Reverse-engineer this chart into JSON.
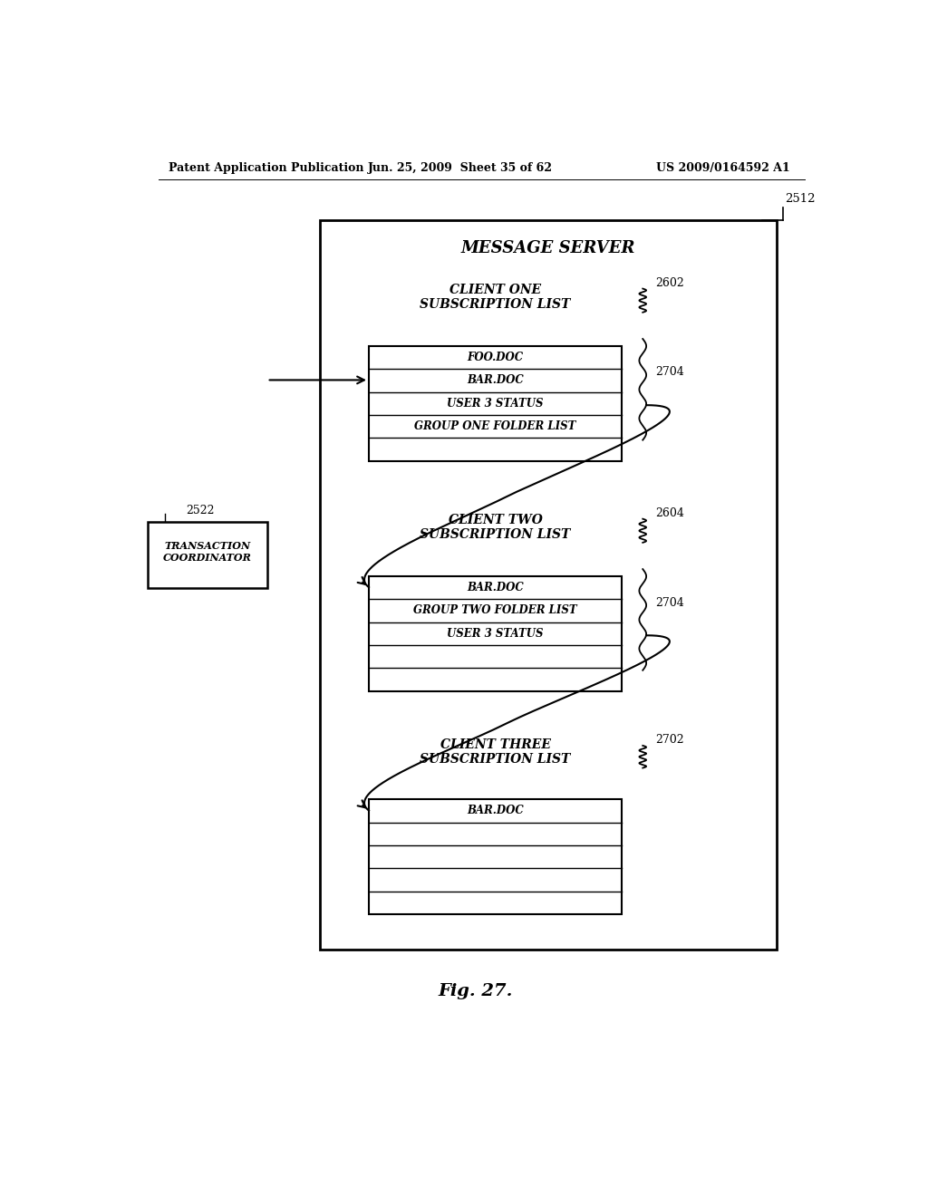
{
  "header_left": "Patent Application Publication",
  "header_center": "Jun. 25, 2009  Sheet 35 of 62",
  "header_right": "US 2009/0164592 A1",
  "fig_label": "Fig. 27.",
  "msg_server_label": "MESSAGE SERVER",
  "msg_server_ref": "2512",
  "transaction_label": "TRANSACTION\nCOORDINATOR",
  "transaction_ref": "2522",
  "client1_title": "CLIENT ONE\nSUBSCRIPTION LIST",
  "client1_ref": "2602",
  "client1_items_top": [
    "FOO.DOC",
    "BAR.DOC",
    "USER 3 STATUS",
    "GROUP ONE FOLDER LIST",
    ""
  ],
  "client1_wavy_ref": "2704",
  "client2_title": "CLIENT TWO\nSUBSCRIPTION LIST",
  "client2_ref": "2604",
  "client2_items_top": [
    "BAR.DOC",
    "GROUP TWO FOLDER LIST",
    "USER 3 STATUS",
    "",
    ""
  ],
  "client2_wavy_ref": "2704",
  "client3_title": "CLIENT THREE\nSUBSCRIPTION LIST",
  "client3_ref": "2702",
  "client3_items_top": [
    "BAR.DOC",
    "",
    "",
    "",
    ""
  ]
}
